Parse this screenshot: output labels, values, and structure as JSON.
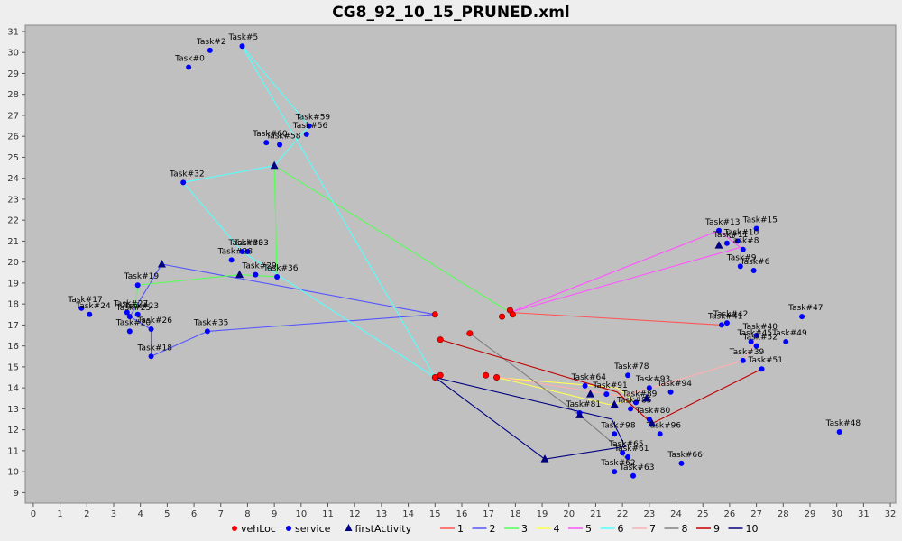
{
  "chart_data": {
    "type": "scatter",
    "title": "CG8_92_10_15_PRUNED.xml",
    "xlim": [
      -0.3,
      32.2
    ],
    "ylim": [
      8.5,
      31.3
    ],
    "x_ticks": [
      0,
      1,
      2,
      3,
      4,
      5,
      6,
      7,
      8,
      9,
      10,
      11,
      12,
      13,
      14,
      15,
      16,
      17,
      18,
      19,
      20,
      21,
      22,
      23,
      24,
      25,
      26,
      27,
      28,
      29,
      30,
      31,
      32
    ],
    "y_ticks": [
      9,
      10,
      11,
      12,
      13,
      14,
      15,
      16,
      17,
      18,
      19,
      20,
      21,
      22,
      23,
      24,
      25,
      26,
      27,
      28,
      29,
      30,
      31
    ],
    "grid": false,
    "legend_position": "bottom",
    "colors": {
      "plot_bg": "#c0c0c0",
      "vehLoc": "#ff0000",
      "service": "#0000ff",
      "firstActivity": "#000080",
      "1": "#ff5555",
      "2": "#5555ff",
      "3": "#55ff55",
      "4": "#ffff55",
      "5": "#ff55ff",
      "6": "#55ffff",
      "7": "#ffafaf",
      "8": "#808080",
      "9": "#c00000",
      "10": "#000080"
    },
    "legend": [
      "vehLoc",
      "service",
      "firstActivity",
      "1",
      "2",
      "3",
      "4",
      "5",
      "6",
      "7",
      "8",
      "9",
      "10"
    ],
    "vehLoc": [
      [
        15.0,
        17.5
      ],
      [
        17.5,
        17.4
      ],
      [
        17.8,
        17.7
      ],
      [
        17.9,
        17.5
      ],
      [
        15.0,
        14.5
      ],
      [
        15.2,
        14.6
      ],
      [
        15.2,
        16.3
      ],
      [
        16.3,
        16.6
      ],
      [
        16.9,
        14.6
      ],
      [
        17.3,
        14.5
      ]
    ],
    "service": [
      {
        "label": "Task#0",
        "x": 5.8,
        "y": 29.3
      },
      {
        "label": "Task#2",
        "x": 6.6,
        "y": 30.1
      },
      {
        "label": "Task#5",
        "x": 7.8,
        "y": 30.3
      },
      {
        "label": "Task#59",
        "x": 10.3,
        "y": 26.5
      },
      {
        "label": "Task#56",
        "x": 10.2,
        "y": 26.1
      },
      {
        "label": "Task#60",
        "x": 8.7,
        "y": 25.7
      },
      {
        "label": "Task#58",
        "x": 9.2,
        "y": 25.6
      },
      {
        "label": "Task#32",
        "x": 5.6,
        "y": 23.8
      },
      {
        "label": "Task#33",
        "x": 8.0,
        "y": 20.5
      },
      {
        "label": "Task#30",
        "x": 7.8,
        "y": 20.5
      },
      {
        "label": "Task#28",
        "x": 7.4,
        "y": 20.1
      },
      {
        "label": "Task#29",
        "x": 8.3,
        "y": 19.4
      },
      {
        "label": "Task#36",
        "x": 9.1,
        "y": 19.3
      },
      {
        "label": "Task#19",
        "x": 3.9,
        "y": 18.9
      },
      {
        "label": "Task#17",
        "x": 1.8,
        "y": 17.8
      },
      {
        "label": "Task#24",
        "x": 2.1,
        "y": 17.5
      },
      {
        "label": "Task#27",
        "x": 3.5,
        "y": 17.6
      },
      {
        "label": "Task#25",
        "x": 3.6,
        "y": 17.4
      },
      {
        "label": "Task#23",
        "x": 3.9,
        "y": 17.5
      },
      {
        "label": "Task#26",
        "x": 4.4,
        "y": 16.8
      },
      {
        "label": "Task#20",
        "x": 3.6,
        "y": 16.7
      },
      {
        "label": "Task#18",
        "x": 4.4,
        "y": 15.5
      },
      {
        "label": "Task#35",
        "x": 6.5,
        "y": 16.7
      },
      {
        "label": "Task#13",
        "x": 25.6,
        "y": 21.5
      },
      {
        "label": "Task#15",
        "x": 27.0,
        "y": 21.6
      },
      {
        "label": "Task#10",
        "x": 26.3,
        "y": 21.0
      },
      {
        "label": "Task#11",
        "x": 25.9,
        "y": 20.9
      },
      {
        "label": "Task#8",
        "x": 26.5,
        "y": 20.6
      },
      {
        "label": "Task#9",
        "x": 26.4,
        "y": 19.8
      },
      {
        "label": "Task#6",
        "x": 26.9,
        "y": 19.6
      },
      {
        "label": "Task#42",
        "x": 25.9,
        "y": 17.1
      },
      {
        "label": "Task#41",
        "x": 25.7,
        "y": 17.0
      },
      {
        "label": "Task#47",
        "x": 28.7,
        "y": 17.4
      },
      {
        "label": "Task#40",
        "x": 27.0,
        "y": 16.5
      },
      {
        "label": "Task#45",
        "x": 26.8,
        "y": 16.2
      },
      {
        "label": "Task#49",
        "x": 28.1,
        "y": 16.2
      },
      {
        "label": "Task#52",
        "x": 27.0,
        "y": 16.0
      },
      {
        "label": "Task#39",
        "x": 26.5,
        "y": 15.3
      },
      {
        "label": "Task#51",
        "x": 27.2,
        "y": 14.9
      },
      {
        "label": "Task#48",
        "x": 30.1,
        "y": 11.9
      },
      {
        "label": "Task#64",
        "x": 20.6,
        "y": 14.1
      },
      {
        "label": "Task#78",
        "x": 22.2,
        "y": 14.6
      },
      {
        "label": "Task#93",
        "x": 23.0,
        "y": 14.0
      },
      {
        "label": "Task#94",
        "x": 23.8,
        "y": 13.8
      },
      {
        "label": "Task#91",
        "x": 21.4,
        "y": 13.7
      },
      {
        "label": "Task#89",
        "x": 22.5,
        "y": 13.3
      },
      {
        "label": "Task#85",
        "x": 22.3,
        "y": 13.0
      },
      {
        "label": "Task#81",
        "x": 20.4,
        "y": 12.8
      },
      {
        "label": "Task#80",
        "x": 23.0,
        "y": 12.5
      },
      {
        "label": "Task#96",
        "x": 23.4,
        "y": 11.8
      },
      {
        "label": "Task#98",
        "x": 21.7,
        "y": 11.8
      },
      {
        "label": "Task#65",
        "x": 22.0,
        "y": 10.9
      },
      {
        "label": "Task#61",
        "x": 22.2,
        "y": 10.7
      },
      {
        "label": "Task#66",
        "x": 24.2,
        "y": 10.4
      },
      {
        "label": "Task#63",
        "x": 22.4,
        "y": 9.8
      },
      {
        "label": "Task#62",
        "x": 21.7,
        "y": 10.0
      }
    ],
    "firstActivity": [
      [
        9.0,
        24.6
      ],
      [
        4.8,
        19.9
      ],
      [
        7.7,
        19.4
      ],
      [
        25.6,
        20.8
      ],
      [
        20.4,
        12.7
      ],
      [
        19.1,
        10.6
      ],
      [
        20.8,
        13.7
      ],
      [
        23.1,
        12.3
      ],
      [
        22.9,
        13.5
      ],
      [
        21.7,
        13.2
      ]
    ],
    "routes": [
      {
        "name": "1",
        "points": [
          [
            17.8,
            17.6
          ],
          [
            25.7,
            17.0
          ]
        ]
      },
      {
        "name": "2",
        "points": [
          [
            15.0,
            17.5
          ],
          [
            4.8,
            19.9
          ],
          [
            3.8,
            17.8
          ],
          [
            3.6,
            17.4
          ],
          [
            4.4,
            16.8
          ],
          [
            4.4,
            15.5
          ],
          [
            6.5,
            16.7
          ],
          [
            15.0,
            17.5
          ]
        ]
      },
      {
        "name": "3",
        "points": [
          [
            17.8,
            17.6
          ],
          [
            9.0,
            24.6
          ],
          [
            9.1,
            19.3
          ],
          [
            7.7,
            19.4
          ],
          [
            3.9,
            18.9
          ],
          [
            3.8,
            17.6
          ]
        ]
      },
      {
        "name": "4",
        "points": [
          [
            17.3,
            14.5
          ],
          [
            21.8,
            14.0
          ],
          [
            22.4,
            13.4
          ],
          [
            21.5,
            13.2
          ],
          [
            17.3,
            14.5
          ]
        ]
      },
      {
        "name": "5",
        "points": [
          [
            17.8,
            17.6
          ],
          [
            25.6,
            21.5
          ],
          [
            26.4,
            20.7
          ],
          [
            17.8,
            17.6
          ]
        ]
      },
      {
        "name": "6",
        "points": [
          [
            15.0,
            14.5
          ],
          [
            7.8,
            30.3
          ],
          [
            10.3,
            26.5
          ],
          [
            9.0,
            24.6
          ],
          [
            5.6,
            23.8
          ],
          [
            7.8,
            20.5
          ],
          [
            15.0,
            14.5
          ]
        ]
      },
      {
        "name": "7",
        "points": [
          [
            16.9,
            14.6
          ],
          [
            22.0,
            13.6
          ],
          [
            26.5,
            15.3
          ],
          [
            27.0,
            16.3
          ]
        ]
      },
      {
        "name": "8",
        "points": [
          [
            16.3,
            16.6
          ],
          [
            20.4,
            12.7
          ],
          [
            21.7,
            11.3
          ],
          [
            22.4,
            10.2
          ]
        ]
      },
      {
        "name": "9",
        "points": [
          [
            15.2,
            16.3
          ],
          [
            21.8,
            13.8
          ],
          [
            23.1,
            12.3
          ],
          [
            27.2,
            14.9
          ]
        ]
      },
      {
        "name": "10",
        "points": [
          [
            15.0,
            14.5
          ],
          [
            19.1,
            10.6
          ],
          [
            22.1,
            11.2
          ],
          [
            21.6,
            12.5
          ],
          [
            15.0,
            14.5
          ]
        ]
      }
    ]
  }
}
